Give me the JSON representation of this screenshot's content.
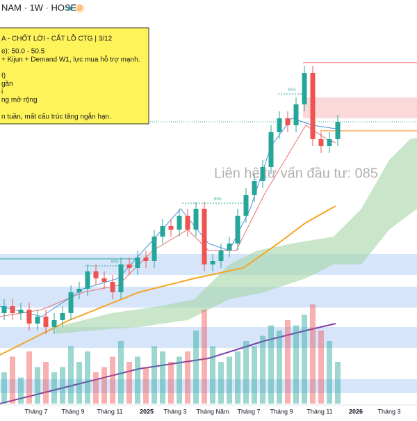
{
  "header": {
    "symbol": "NAM · 1W · HOSE",
    "badge": "D"
  },
  "note": {
    "lines": [
      "A - CHỐT LỜI - CẮT LỖ CTG | 3/12",
      "e): 50.0 - 50.5",
      "+ Kijun + Demand W1, lực mua hỗ trợ mạnh.",
      "t)",
      "gần",
      "i",
      "ng mở rộng",
      "n tuần, mất cấu trúc tăng ngắn hạn."
    ]
  },
  "watermark": "Liên hệ tư vấn đầu tư:  085",
  "markers": [
    "BOS",
    "BOS",
    "BOS"
  ],
  "chart_data": {
    "type": "candlestick",
    "open": [
      15,
      16,
      15,
      15.5,
      13.5,
      14.5,
      13,
      14,
      15,
      18,
      18.5,
      21,
      20,
      19.5,
      18,
      22,
      21.5,
      23,
      22.5,
      26,
      27.5,
      27,
      29,
      27,
      30,
      22,
      22.5,
      24,
      25,
      29,
      32,
      34,
      36,
      41,
      43,
      42,
      45,
      49.5,
      40,
      39,
      40
    ],
    "high": [
      17,
      17,
      16.5,
      16.5,
      15.5,
      15.5,
      15,
      16,
      19,
      19.5,
      22,
      22,
      21,
      20.5,
      23,
      23,
      24,
      24,
      27,
      28.5,
      28.5,
      30,
      30,
      31,
      31,
      23.5,
      25,
      26,
      30,
      33,
      35,
      37,
      42,
      44,
      44,
      46,
      50.5,
      50.5,
      41,
      41,
      43.5
    ],
    "low": [
      14,
      14,
      14,
      12.5,
      12.5,
      12,
      12,
      13,
      14,
      17,
      17.5,
      19,
      18.5,
      17,
      17,
      20.5,
      20.5,
      21.5,
      21.5,
      25,
      26,
      26,
      26,
      26,
      21,
      21,
      21.5,
      23,
      24,
      28,
      31,
      33,
      35,
      40,
      41,
      41,
      44,
      39,
      38,
      38,
      39
    ],
    "close": [
      16,
      15,
      15.5,
      13.5,
      14.5,
      13,
      14,
      15,
      18,
      18.5,
      21,
      20,
      19.5,
      18,
      22,
      21.5,
      23,
      22.5,
      26,
      27.5,
      27,
      29,
      27,
      30,
      22,
      22.5,
      24,
      25,
      29,
      32,
      34,
      36,
      41,
      43,
      42,
      45,
      49.5,
      40,
      39,
      40,
      42.5
    ],
    "volume": [
      30,
      45,
      25,
      50,
      35,
      40,
      30,
      35,
      55,
      40,
      50,
      30,
      35,
      45,
      60,
      40,
      45,
      35,
      55,
      50,
      40,
      45,
      50,
      70,
      90,
      55,
      40,
      45,
      50,
      60,
      55,
      65,
      75,
      70,
      80,
      75,
      85,
      95,
      70,
      60,
      40
    ],
    "ylim": [
      0,
      60
    ],
    "volume_lim": [
      0,
      100
    ],
    "up_color": "#26a69a",
    "down_color": "#ef5350",
    "x_labels": [
      "Tháng 7",
      "Tháng 9",
      "Tháng 11",
      "2025",
      "Tháng 3",
      "Tháng Năm",
      "Tháng 7",
      "Tháng 9",
      "Tháng 11",
      "2026",
      "Tháng 3"
    ]
  }
}
